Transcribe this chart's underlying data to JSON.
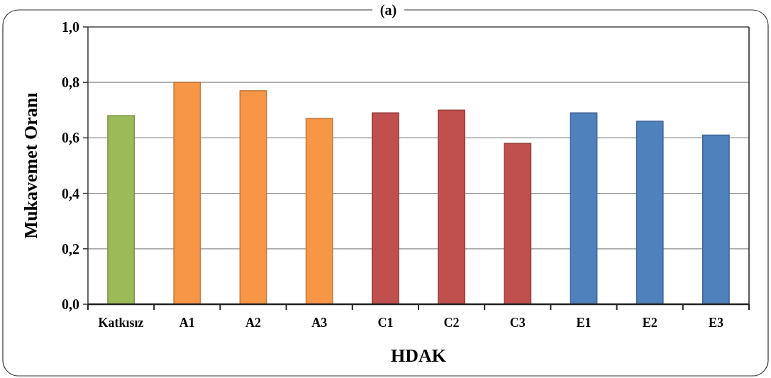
{
  "chart_data": {
    "type": "bar",
    "title": "(a)",
    "xlabel": "HDAK",
    "ylabel": "Mukavemet Oranı",
    "categories": [
      "Katkısız",
      "A1",
      "A2",
      "A3",
      "C1",
      "C2",
      "C3",
      "E1",
      "E2",
      "E3"
    ],
    "values": [
      0.68,
      0.8,
      0.77,
      0.67,
      0.69,
      0.7,
      0.58,
      0.69,
      0.66,
      0.61
    ],
    "colors": [
      "#9bbb59",
      "#f79646",
      "#f79646",
      "#f79646",
      "#c0504d",
      "#c0504d",
      "#c0504d",
      "#4f81bd",
      "#4f81bd",
      "#4f81bd"
    ],
    "ylim": [
      0,
      1
    ],
    "yticks": [
      {
        "value": 0,
        "label": "0,0"
      },
      {
        "value": 0.2,
        "label": "0,2"
      },
      {
        "value": 0.4,
        "label": "0,4"
      },
      {
        "value": 0.6,
        "label": "0,6"
      },
      {
        "value": 0.8,
        "label": "0,8"
      },
      {
        "value": 1,
        "label": "1,0"
      }
    ],
    "grid": "y"
  }
}
